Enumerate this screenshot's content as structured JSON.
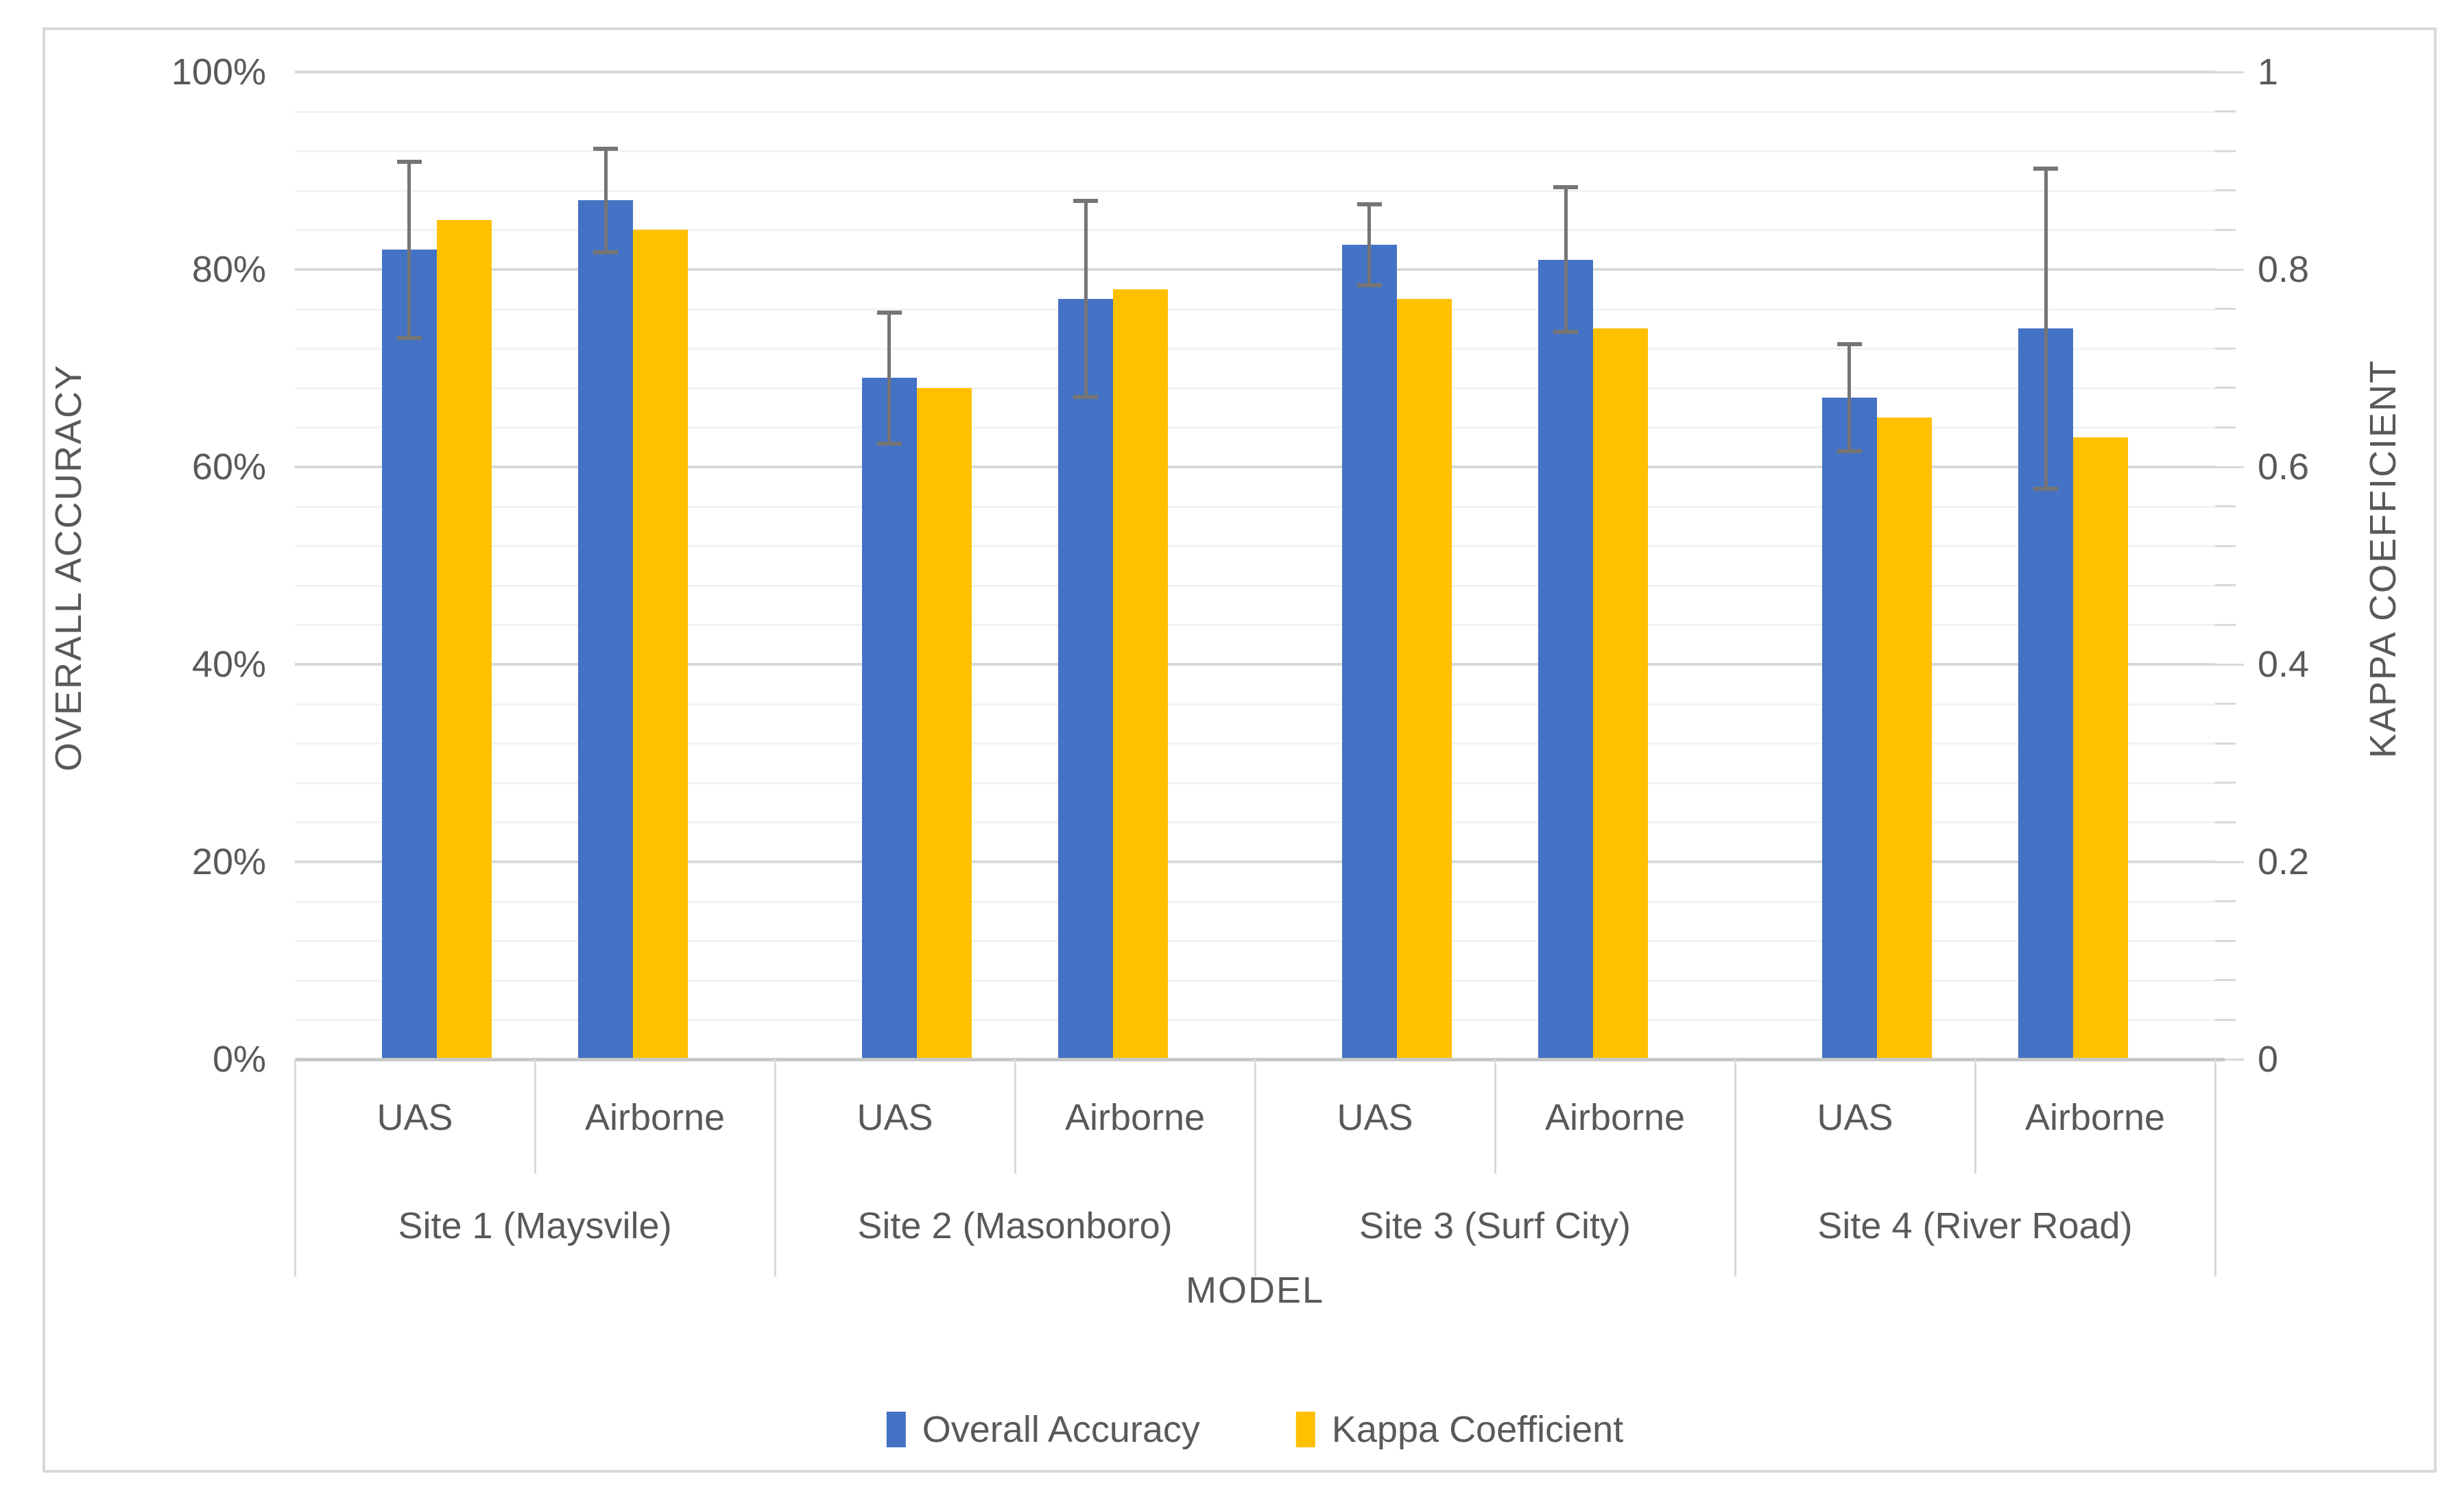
{
  "chart_data": {
    "type": "bar",
    "orientation": "vertical",
    "title": "",
    "x_axis_title": "MODEL",
    "left_axis": {
      "title": "OVERALL ACCURACY",
      "tick_labels": [
        "0%",
        "20%",
        "40%",
        "60%",
        "80%",
        "100%"
      ],
      "min": 0,
      "max": 100,
      "major_unit": 20,
      "minor_unit": 4
    },
    "right_axis": {
      "title": "KAPPA COEFFICIENT",
      "tick_labels": [
        "0",
        "0.2",
        "0.4",
        "0.6",
        "0.8",
        "1"
      ],
      "min": 0,
      "max": 1,
      "major_unit": 0.2,
      "minor_unit": 0.04
    },
    "groups": [
      {
        "site": "Site 1 (Maysvile)",
        "models": [
          "UAS",
          "Airborne"
        ]
      },
      {
        "site": "Site 2 (Masonboro)",
        "models": [
          "UAS",
          "Airborne"
        ]
      },
      {
        "site": "Site 3 (Surf City)",
        "models": [
          "UAS",
          "Airborne"
        ]
      },
      {
        "site": "Site 4 (River Road)",
        "models": [
          "UAS",
          "Airborne"
        ]
      }
    ],
    "series": [
      {
        "name": "Overall Accuracy",
        "axis": "left",
        "color": "#4472C4",
        "values_percent": [
          82,
          87,
          69,
          77,
          82.5,
          81,
          67,
          74
        ],
        "error_bars_percent": [
          9,
          5.3,
          6.7,
          10,
          4.2,
          7.4,
          5.5,
          16.3
        ]
      },
      {
        "name": "Kappa Coefficient",
        "axis": "right",
        "color": "#FFC000",
        "values": [
          0.85,
          0.84,
          0.68,
          0.78,
          0.77,
          0.74,
          0.65,
          0.63
        ]
      }
    ],
    "legend": {
      "position": "bottom",
      "items": [
        "Overall Accuracy",
        "Kappa Coefficient"
      ]
    },
    "style": {
      "minor_gridline_color": "#F2F2F2",
      "major_gridline_color": "#D9D9D9",
      "axis_line_color": "#C8C8C8",
      "separator_color": "#D9D9D9",
      "error_bar_color": "#757575",
      "text_color": "#595959",
      "grid": "on"
    }
  }
}
